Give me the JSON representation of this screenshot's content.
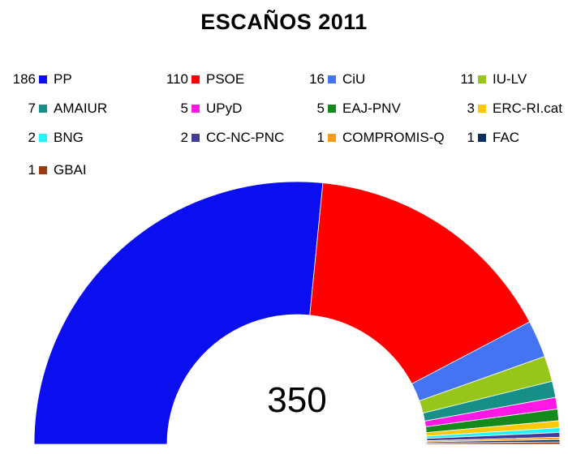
{
  "chart_data": {
    "type": "pie",
    "variant": "half-donut",
    "title": "ESCAÑOS 2011",
    "total_label": "350",
    "series": [
      {
        "name": "PP",
        "value": 186,
        "color": "#0b0ff0"
      },
      {
        "name": "PSOE",
        "value": 110,
        "color": "#ff0000"
      },
      {
        "name": "CiU",
        "value": 16,
        "color": "#4474f2"
      },
      {
        "name": "IU-LV",
        "value": 11,
        "color": "#97c61a"
      },
      {
        "name": "AMAIUR",
        "value": 7,
        "color": "#168f88"
      },
      {
        "name": "UPyD",
        "value": 5,
        "color": "#ff17e6"
      },
      {
        "name": "EAJ-PNV",
        "value": 5,
        "color": "#138a1a"
      },
      {
        "name": "ERC-RI.cat",
        "value": 3,
        "color": "#ffc800"
      },
      {
        "name": "BNG",
        "value": 2,
        "color": "#25f1ff"
      },
      {
        "name": "CC-NC-PNC",
        "value": 2,
        "color": "#403c98"
      },
      {
        "name": "COMPROMIS-Q",
        "value": 1,
        "color": "#ff9a12"
      },
      {
        "name": "FAC",
        "value": 1,
        "color": "#0c2f63"
      },
      {
        "name": "GBAI",
        "value": 1,
        "color": "#9a3b12"
      }
    ],
    "legend_placement": "top"
  }
}
